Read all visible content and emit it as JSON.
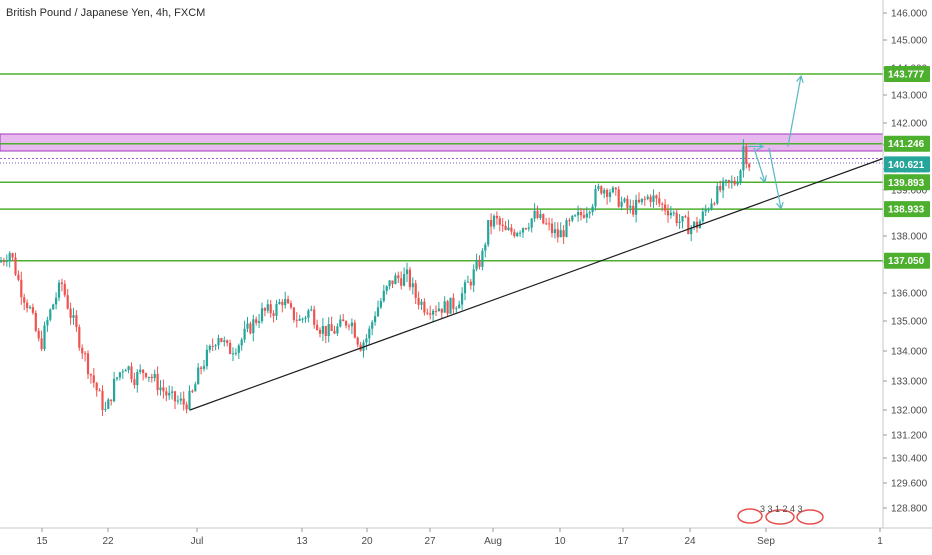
{
  "chart_title": "British Pound / Japanese Yen, 4h, FXCM",
  "colors": {
    "up": "#26a69a",
    "down": "#ef5350",
    "level": "#4caf2e",
    "zone_fill": "#e7b9ee",
    "zone_border": "#a23ab9",
    "trendline": "#1f1f1f",
    "arrow": "#55b9c0",
    "axis_text": "#4a4a4a",
    "price_badge": "#26a69a"
  },
  "watermark_text": "3 3 1 2 4 3",
  "chart_data": {
    "type": "candlestick",
    "y_range": [
      128.5,
      146.3
    ],
    "y_ticks": [
      "146.000",
      "145.000",
      "144.000",
      "143.000",
      "142.000",
      "141.200",
      "140.400",
      "139.600",
      "138.000",
      "137.000",
      "136.000",
      "135.000",
      "134.000",
      "133.000",
      "132.000",
      "131.200",
      "130.400",
      "129.600",
      "128.800"
    ],
    "x_ticks": [
      "15",
      "22",
      "Jul",
      "13",
      "20",
      "27",
      "Aug",
      "10",
      "17",
      "24",
      "Sep",
      "1"
    ],
    "levels": [
      {
        "label": "143.777",
        "value": 143.777
      },
      {
        "label": "141.246",
        "value": 141.246
      },
      {
        "label": "139.893",
        "value": 139.893
      },
      {
        "label": "138.933",
        "value": 138.933
      },
      {
        "label": "137.050",
        "value": 137.05
      }
    ],
    "last_price": {
      "label": "140.621",
      "value": 140.621
    },
    "resistance_zone": [
      141.0,
      141.6
    ],
    "trendline": [
      {
        "date": "Jun 30",
        "price": 132.0
      },
      {
        "date": "Sep 5",
        "price": 140.7
      }
    ],
    "projection_arrows": [
      {
        "from": "Aug 30 · 141.2",
        "to": "Sep 2 · 143.7"
      },
      {
        "from": "Aug 30 · 141.1",
        "to": "Aug 31 · 139.9"
      },
      {
        "from": "Aug 31 · 141.1",
        "to": "Sep 2 · 138.9"
      }
    ],
    "candles_path": [
      [
        0,
        137.0
      ],
      [
        10,
        137.4
      ],
      [
        20,
        136.2
      ],
      [
        30,
        135.4
      ],
      [
        40,
        134.1
      ],
      [
        50,
        135.3
      ],
      [
        55,
        135.8
      ],
      [
        62,
        136.3
      ],
      [
        70,
        135.3
      ],
      [
        80,
        134.3
      ],
      [
        90,
        133.3
      ],
      [
        100,
        132.4
      ],
      [
        106,
        131.9
      ],
      [
        115,
        133.0
      ],
      [
        125,
        133.6
      ],
      [
        135,
        133.1
      ],
      [
        145,
        133.4
      ],
      [
        160,
        132.8
      ],
      [
        170,
        132.4
      ],
      [
        185,
        132.2
      ],
      [
        192,
        132.5
      ],
      [
        200,
        133.4
      ],
      [
        210,
        134.0
      ],
      [
        218,
        134.6
      ],
      [
        228,
        134.0
      ],
      [
        240,
        134.3
      ],
      [
        250,
        134.8
      ],
      [
        262,
        135.3
      ],
      [
        275,
        135.4
      ],
      [
        283,
        135.8
      ],
      [
        290,
        135.3
      ],
      [
        300,
        135.0
      ],
      [
        310,
        135.4
      ],
      [
        320,
        134.8
      ],
      [
        330,
        134.6
      ],
      [
        340,
        134.8
      ],
      [
        350,
        135.1
      ],
      [
        360,
        134.2
      ],
      [
        368,
        134.5
      ],
      [
        375,
        135.3
      ],
      [
        385,
        136.0
      ],
      [
        392,
        136.4
      ],
      [
        400,
        136.5
      ],
      [
        408,
        136.5
      ],
      [
        415,
        135.9
      ],
      [
        425,
        135.5
      ],
      [
        435,
        135.5
      ],
      [
        445,
        135.5
      ],
      [
        455,
        135.6
      ],
      [
        465,
        136.1
      ],
      [
        475,
        136.7
      ],
      [
        482,
        137.2
      ],
      [
        488,
        138.3
      ],
      [
        495,
        138.6
      ],
      [
        505,
        138.1
      ],
      [
        515,
        138.2
      ],
      [
        525,
        138.4
      ],
      [
        535,
        138.7
      ],
      [
        545,
        138.4
      ],
      [
        558,
        138.0
      ],
      [
        570,
        138.4
      ],
      [
        580,
        138.7
      ],
      [
        592,
        139.2
      ],
      [
        600,
        139.7
      ],
      [
        610,
        139.6
      ],
      [
        620,
        139.2
      ],
      [
        630,
        138.9
      ],
      [
        640,
        139.1
      ],
      [
        650,
        139.4
      ],
      [
        660,
        139.1
      ],
      [
        670,
        138.9
      ],
      [
        680,
        138.5
      ],
      [
        690,
        138.3
      ],
      [
        698,
        138.4
      ],
      [
        706,
        138.9
      ],
      [
        712,
        139.3
      ],
      [
        720,
        139.6
      ],
      [
        728,
        139.8
      ],
      [
        735,
        139.9
      ],
      [
        740,
        140.3
      ],
      [
        744,
        141.3
      ],
      [
        748,
        140.5
      ],
      [
        752,
        140.8
      ]
    ]
  }
}
